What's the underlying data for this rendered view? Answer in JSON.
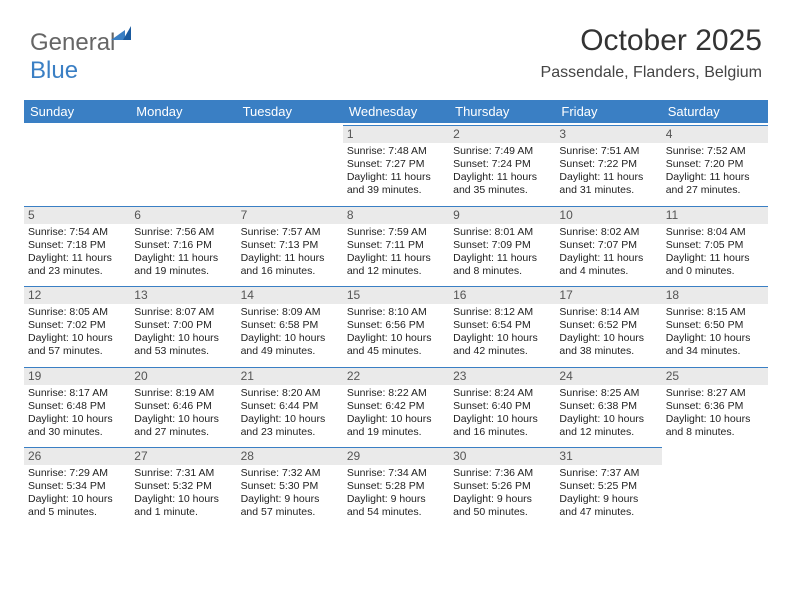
{
  "logo": {
    "text1": "General",
    "text2": "Blue"
  },
  "title": "October 2025",
  "subtitle": "Passendale, Flanders, Belgium",
  "colors": {
    "header_bg": "#3a7fc4",
    "header_text": "#ffffff",
    "daynum_bg": "#eaeaea",
    "daynum_text": "#555555",
    "body_text": "#222222",
    "separator": "#3a7fc4",
    "page_bg": "#ffffff"
  },
  "typography": {
    "title_fontsize": 30,
    "subtitle_fontsize": 16,
    "header_fontsize": 13,
    "cell_fontsize": 10.5,
    "daynum_fontsize": 12,
    "font_family": "Arial"
  },
  "day_headers": [
    "Sunday",
    "Monday",
    "Tuesday",
    "Wednesday",
    "Thursday",
    "Friday",
    "Saturday"
  ],
  "weeks": [
    [
      null,
      null,
      null,
      {
        "n": "1",
        "sunrise": "7:48 AM",
        "sunset": "7:27 PM",
        "dl": "11 hours and 39 minutes."
      },
      {
        "n": "2",
        "sunrise": "7:49 AM",
        "sunset": "7:24 PM",
        "dl": "11 hours and 35 minutes."
      },
      {
        "n": "3",
        "sunrise": "7:51 AM",
        "sunset": "7:22 PM",
        "dl": "11 hours and 31 minutes."
      },
      {
        "n": "4",
        "sunrise": "7:52 AM",
        "sunset": "7:20 PM",
        "dl": "11 hours and 27 minutes."
      }
    ],
    [
      {
        "n": "5",
        "sunrise": "7:54 AM",
        "sunset": "7:18 PM",
        "dl": "11 hours and 23 minutes."
      },
      {
        "n": "6",
        "sunrise": "7:56 AM",
        "sunset": "7:16 PM",
        "dl": "11 hours and 19 minutes."
      },
      {
        "n": "7",
        "sunrise": "7:57 AM",
        "sunset": "7:13 PM",
        "dl": "11 hours and 16 minutes."
      },
      {
        "n": "8",
        "sunrise": "7:59 AM",
        "sunset": "7:11 PM",
        "dl": "11 hours and 12 minutes."
      },
      {
        "n": "9",
        "sunrise": "8:01 AM",
        "sunset": "7:09 PM",
        "dl": "11 hours and 8 minutes."
      },
      {
        "n": "10",
        "sunrise": "8:02 AM",
        "sunset": "7:07 PM",
        "dl": "11 hours and 4 minutes."
      },
      {
        "n": "11",
        "sunrise": "8:04 AM",
        "sunset": "7:05 PM",
        "dl": "11 hours and 0 minutes."
      }
    ],
    [
      {
        "n": "12",
        "sunrise": "8:05 AM",
        "sunset": "7:02 PM",
        "dl": "10 hours and 57 minutes."
      },
      {
        "n": "13",
        "sunrise": "8:07 AM",
        "sunset": "7:00 PM",
        "dl": "10 hours and 53 minutes."
      },
      {
        "n": "14",
        "sunrise": "8:09 AM",
        "sunset": "6:58 PM",
        "dl": "10 hours and 49 minutes."
      },
      {
        "n": "15",
        "sunrise": "8:10 AM",
        "sunset": "6:56 PM",
        "dl": "10 hours and 45 minutes."
      },
      {
        "n": "16",
        "sunrise": "8:12 AM",
        "sunset": "6:54 PM",
        "dl": "10 hours and 42 minutes."
      },
      {
        "n": "17",
        "sunrise": "8:14 AM",
        "sunset": "6:52 PM",
        "dl": "10 hours and 38 minutes."
      },
      {
        "n": "18",
        "sunrise": "8:15 AM",
        "sunset": "6:50 PM",
        "dl": "10 hours and 34 minutes."
      }
    ],
    [
      {
        "n": "19",
        "sunrise": "8:17 AM",
        "sunset": "6:48 PM",
        "dl": "10 hours and 30 minutes."
      },
      {
        "n": "20",
        "sunrise": "8:19 AM",
        "sunset": "6:46 PM",
        "dl": "10 hours and 27 minutes."
      },
      {
        "n": "21",
        "sunrise": "8:20 AM",
        "sunset": "6:44 PM",
        "dl": "10 hours and 23 minutes."
      },
      {
        "n": "22",
        "sunrise": "8:22 AM",
        "sunset": "6:42 PM",
        "dl": "10 hours and 19 minutes."
      },
      {
        "n": "23",
        "sunrise": "8:24 AM",
        "sunset": "6:40 PM",
        "dl": "10 hours and 16 minutes."
      },
      {
        "n": "24",
        "sunrise": "8:25 AM",
        "sunset": "6:38 PM",
        "dl": "10 hours and 12 minutes."
      },
      {
        "n": "25",
        "sunrise": "8:27 AM",
        "sunset": "6:36 PM",
        "dl": "10 hours and 8 minutes."
      }
    ],
    [
      {
        "n": "26",
        "sunrise": "7:29 AM",
        "sunset": "5:34 PM",
        "dl": "10 hours and 5 minutes."
      },
      {
        "n": "27",
        "sunrise": "7:31 AM",
        "sunset": "5:32 PM",
        "dl": "10 hours and 1 minute."
      },
      {
        "n": "28",
        "sunrise": "7:32 AM",
        "sunset": "5:30 PM",
        "dl": "9 hours and 57 minutes."
      },
      {
        "n": "29",
        "sunrise": "7:34 AM",
        "sunset": "5:28 PM",
        "dl": "9 hours and 54 minutes."
      },
      {
        "n": "30",
        "sunrise": "7:36 AM",
        "sunset": "5:26 PM",
        "dl": "9 hours and 50 minutes."
      },
      {
        "n": "31",
        "sunrise": "7:37 AM",
        "sunset": "5:25 PM",
        "dl": "9 hours and 47 minutes."
      },
      null
    ]
  ],
  "labels": {
    "sunrise": "Sunrise: ",
    "sunset": "Sunset: ",
    "daylight": "Daylight: "
  }
}
